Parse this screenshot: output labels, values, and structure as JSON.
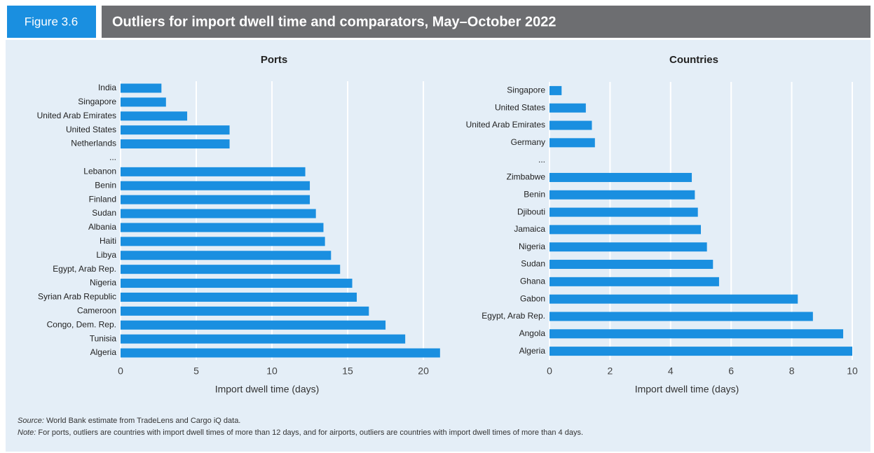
{
  "figure_label": "Figure 3.6",
  "title": "Outliers for import dwell time and comparators, May–October 2022",
  "source_label": "Source:",
  "source": "World Bank estimate from TradeLens and Cargo iQ data.",
  "note_label": "Note:",
  "note": "For ports, outliers are countries with import dwell times of more than 12 days, and for airports, outliers are countries with import dwell times of more than 4 days.",
  "chart_data": [
    {
      "type": "hbar",
      "title": "Ports",
      "x_label": "Import dwell time (days)",
      "color": "#1a8fe0",
      "grid": true,
      "categories": [
        "India",
        "Singapore",
        "United Arab Emirates",
        "United States",
        "Netherlands",
        "...",
        "Lebanon",
        "Benin",
        "Finland",
        "Sudan",
        "Albania",
        "Haiti",
        "Libya",
        "Egypt, Arab Rep.",
        "Nigeria",
        "Syrian Arab Republic",
        "Cameroon",
        "Congo, Dem. Rep.",
        "Tunisia",
        "Algeria"
      ],
      "values": [
        2.7,
        3.0,
        4.4,
        7.2,
        7.2,
        null,
        12.2,
        12.5,
        12.5,
        12.9,
        13.4,
        13.5,
        13.9,
        14.5,
        15.3,
        15.6,
        16.4,
        17.5,
        18.8,
        21.1
      ],
      "xlim": [
        0,
        21.2
      ],
      "xticks": [
        0,
        5,
        10,
        15,
        20
      ]
    },
    {
      "type": "hbar",
      "title": "Countries",
      "x_label": "Import dwell time (days)",
      "color": "#1a8fe0",
      "grid": true,
      "categories": [
        "Singapore",
        "United States",
        "United Arab Emirates",
        "Germany",
        "...",
        "Zimbabwe",
        "Benin",
        "Djibouti",
        "Jamaica",
        "Nigeria",
        "Sudan",
        "Ghana",
        "Gabon",
        "Egypt, Arab Rep.",
        "Angola",
        "Algeria"
      ],
      "values": [
        0.4,
        1.2,
        1.4,
        1.5,
        null,
        4.7,
        4.8,
        4.9,
        5.0,
        5.2,
        5.4,
        5.6,
        8.2,
        8.7,
        9.7,
        10.0
      ],
      "xlim": [
        0,
        10
      ],
      "xticks": [
        0,
        2,
        4,
        6,
        8,
        10
      ]
    }
  ]
}
